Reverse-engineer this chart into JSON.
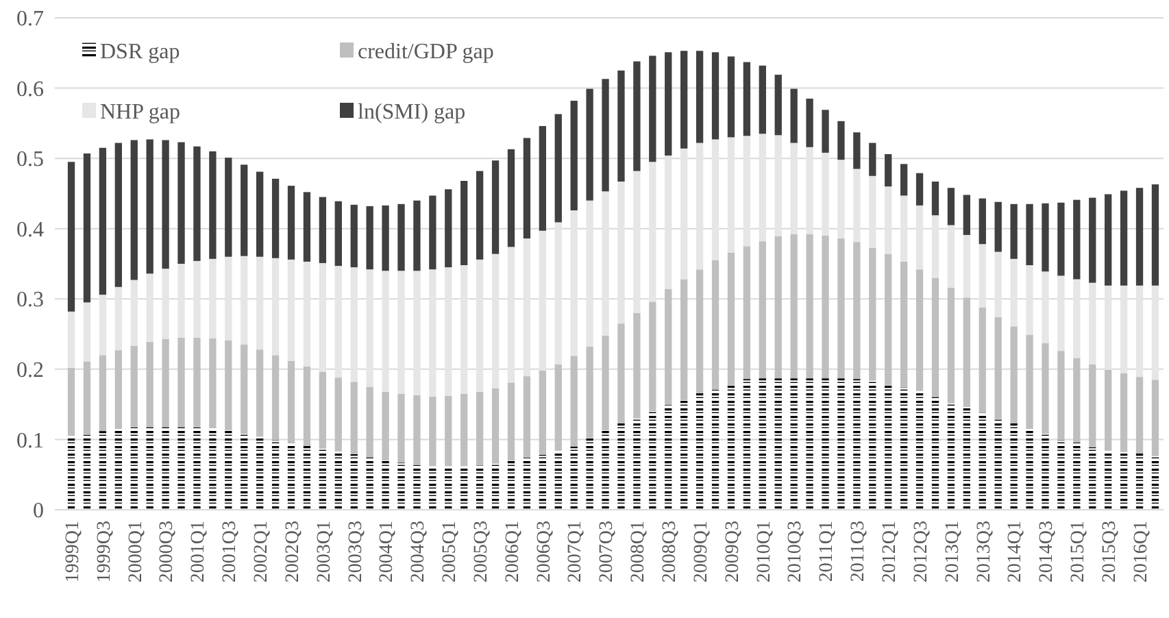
{
  "chart_data": {
    "type": "bar",
    "stacked": true,
    "categories": [
      "1999Q1",
      null,
      "1999Q3",
      null,
      "2000Q1",
      null,
      "2000Q3",
      null,
      "2001Q1",
      null,
      "2001Q3",
      null,
      "2002Q1",
      null,
      "2002Q3",
      null,
      "2003Q1",
      null,
      "2003Q3",
      null,
      "2004Q1",
      null,
      "2004Q3",
      null,
      "2005Q1",
      null,
      "2005Q3",
      null,
      "2006Q1",
      null,
      "2006Q3",
      null,
      "2007Q1",
      null,
      "2007Q3",
      null,
      "2008Q1",
      null,
      "2008Q3",
      null,
      "2009Q1",
      null,
      "2009Q3",
      null,
      "2010Q1",
      null,
      "2010Q3",
      null,
      "2011Q1",
      null,
      "2011Q3",
      null,
      "2012Q1",
      null,
      "2012Q3",
      null,
      "2013Q1",
      null,
      "2013Q3",
      null,
      "2014Q1",
      null,
      "2014Q3",
      null,
      "2015Q1",
      null,
      "2015Q3",
      null,
      "2016Q1",
      null
    ],
    "series": [
      {
        "name": "DSR gap",
        "color": "#000000",
        "values": [
          0.105,
          0.107,
          0.112,
          0.115,
          0.117,
          0.118,
          0.118,
          0.118,
          0.117,
          0.116,
          0.113,
          0.108,
          0.104,
          0.099,
          0.095,
          0.091,
          0.087,
          0.083,
          0.079,
          0.075,
          0.07,
          0.067,
          0.064,
          0.062,
          0.062,
          0.062,
          0.063,
          0.066,
          0.07,
          0.074,
          0.078,
          0.084,
          0.09,
          0.102,
          0.113,
          0.123,
          0.13,
          0.14,
          0.149,
          0.156,
          0.166,
          0.171,
          0.177,
          0.186,
          0.187,
          0.187,
          0.187,
          0.187,
          0.187,
          0.187,
          0.186,
          0.184,
          0.177,
          0.174,
          0.169,
          0.161,
          0.152,
          0.146,
          0.138,
          0.129,
          0.123,
          0.115,
          0.108,
          0.099,
          0.096,
          0.089,
          0.084,
          0.082,
          0.08,
          0.077
        ]
      },
      {
        "name": "credit/GDP gap",
        "color": "#bfbfbf",
        "values": [
          0.097,
          0.104,
          0.108,
          0.112,
          0.116,
          0.121,
          0.125,
          0.127,
          0.128,
          0.128,
          0.128,
          0.127,
          0.124,
          0.121,
          0.117,
          0.113,
          0.109,
          0.105,
          0.103,
          0.1,
          0.098,
          0.098,
          0.099,
          0.099,
          0.1,
          0.103,
          0.105,
          0.107,
          0.111,
          0.116,
          0.12,
          0.123,
          0.129,
          0.13,
          0.135,
          0.142,
          0.15,
          0.156,
          0.165,
          0.172,
          0.176,
          0.184,
          0.189,
          0.189,
          0.195,
          0.202,
          0.205,
          0.205,
          0.203,
          0.199,
          0.195,
          0.189,
          0.187,
          0.179,
          0.173,
          0.169,
          0.164,
          0.156,
          0.15,
          0.145,
          0.138,
          0.134,
          0.129,
          0.127,
          0.12,
          0.118,
          0.115,
          0.112,
          0.109,
          0.108
        ]
      },
      {
        "name": "NHP gap",
        "color": "#e6e6e6",
        "values": [
          0.08,
          0.084,
          0.086,
          0.09,
          0.094,
          0.097,
          0.1,
          0.105,
          0.109,
          0.113,
          0.119,
          0.126,
          0.132,
          0.138,
          0.144,
          0.149,
          0.155,
          0.159,
          0.163,
          0.167,
          0.172,
          0.175,
          0.177,
          0.181,
          0.183,
          0.183,
          0.188,
          0.191,
          0.193,
          0.196,
          0.199,
          0.202,
          0.207,
          0.208,
          0.205,
          0.202,
          0.202,
          0.199,
          0.19,
          0.186,
          0.18,
          0.172,
          0.164,
          0.157,
          0.153,
          0.144,
          0.13,
          0.124,
          0.118,
          0.112,
          0.104,
          0.102,
          0.096,
          0.094,
          0.091,
          0.089,
          0.089,
          0.089,
          0.09,
          0.093,
          0.096,
          0.099,
          0.102,
          0.107,
          0.112,
          0.116,
          0.12,
          0.125,
          0.13,
          0.134
        ]
      },
      {
        "name": "ln(SMI) gap",
        "color": "#404040",
        "values": [
          0.213,
          0.212,
          0.209,
          0.205,
          0.199,
          0.191,
          0.183,
          0.173,
          0.163,
          0.153,
          0.141,
          0.13,
          0.121,
          0.113,
          0.105,
          0.099,
          0.094,
          0.092,
          0.089,
          0.09,
          0.093,
          0.095,
          0.1,
          0.105,
          0.111,
          0.12,
          0.126,
          0.133,
          0.139,
          0.143,
          0.149,
          0.154,
          0.156,
          0.159,
          0.16,
          0.158,
          0.156,
          0.151,
          0.147,
          0.139,
          0.131,
          0.124,
          0.115,
          0.105,
          0.097,
          0.086,
          0.077,
          0.069,
          0.061,
          0.055,
          0.052,
          0.047,
          0.046,
          0.045,
          0.046,
          0.048,
          0.053,
          0.057,
          0.065,
          0.071,
          0.078,
          0.087,
          0.097,
          0.104,
          0.113,
          0.121,
          0.13,
          0.135,
          0.139,
          0.144
        ]
      }
    ],
    "ylim": [
      0,
      0.7
    ],
    "yticks": [
      0,
      0.1,
      0.2,
      0.3,
      0.4,
      0.5,
      0.6,
      0.7
    ],
    "grid": "y",
    "legend": "top left"
  }
}
